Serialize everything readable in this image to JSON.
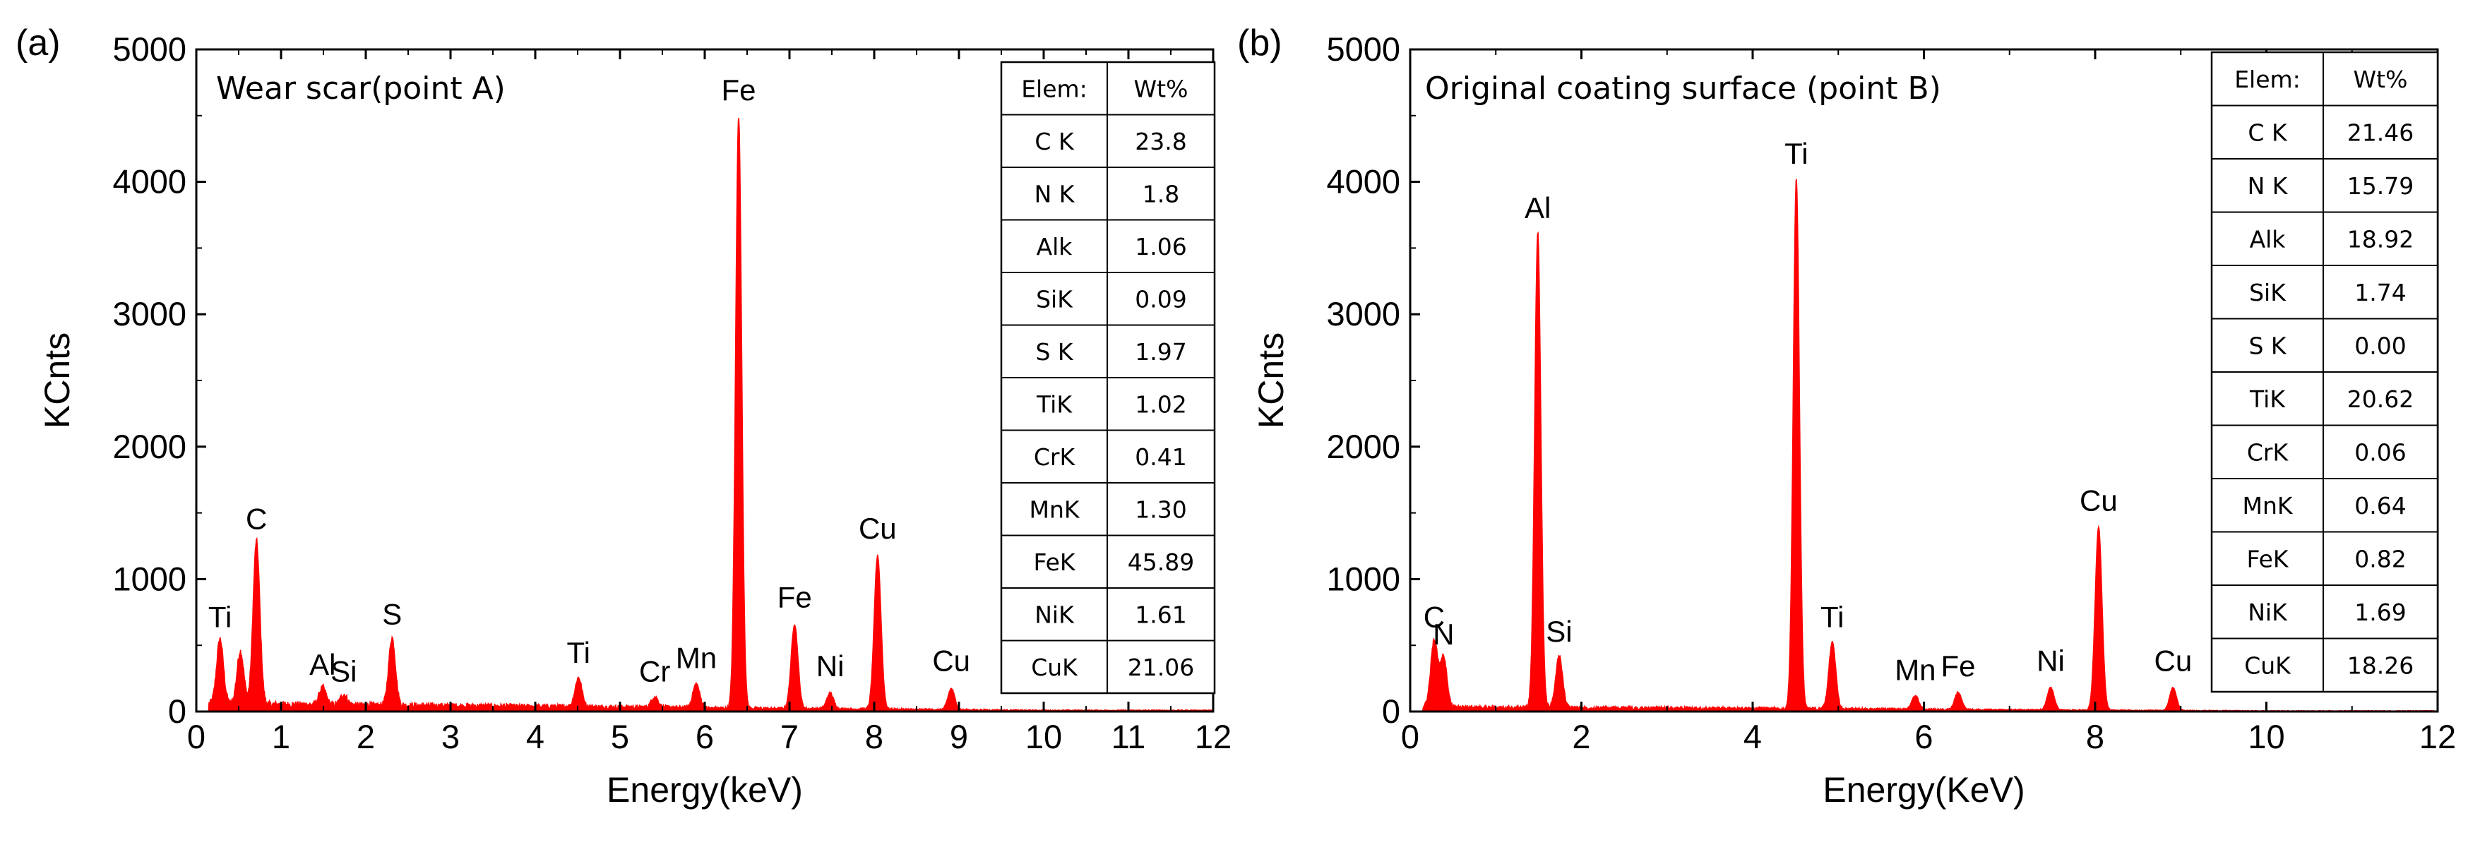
{
  "chart_data": [
    {
      "type": "line",
      "panel_label": "(a)",
      "inset_title": "Wear scar(point A)",
      "xlabel": "Energy(keV)",
      "ylabel": "KCnts",
      "xlim": [
        0,
        12
      ],
      "ylim": [
        0,
        5000
      ],
      "x_ticks": [
        0,
        1,
        2,
        3,
        4,
        5,
        6,
        7,
        8,
        9,
        10,
        11,
        12
      ],
      "y_ticks": [
        0,
        1000,
        2000,
        3000,
        4000,
        5000
      ],
      "series_color": "#ff0000",
      "baseline": 60,
      "peaks": [
        {
          "x": 0.28,
          "y": 520,
          "label": "Ti"
        },
        {
          "x": 0.52,
          "y": 430,
          "label": ""
        },
        {
          "x": 0.71,
          "y": 1260,
          "label": "C"
        },
        {
          "x": 1.49,
          "y": 160,
          "label": "Al"
        },
        {
          "x": 1.74,
          "y": 110,
          "label": "Si"
        },
        {
          "x": 2.31,
          "y": 540,
          "label": "S"
        },
        {
          "x": 4.51,
          "y": 250,
          "label": "Ti"
        },
        {
          "x": 5.41,
          "y": 110,
          "label": "Cr"
        },
        {
          "x": 5.9,
          "y": 210,
          "label": "Mn"
        },
        {
          "x": 6.4,
          "y": 4500,
          "label": "Fe"
        },
        {
          "x": 7.06,
          "y": 670,
          "label": "Fe"
        },
        {
          "x": 7.48,
          "y": 150,
          "label": "Ni"
        },
        {
          "x": 8.04,
          "y": 1190,
          "label": "Cu"
        },
        {
          "x": 8.91,
          "y": 190,
          "label": "Cu"
        }
      ],
      "table": {
        "header": [
          "Elem:",
          "Wt%"
        ],
        "rows": [
          [
            "C K",
            "23.8"
          ],
          [
            "N K",
            "1.8"
          ],
          [
            "Alk",
            "1.06"
          ],
          [
            "SiK",
            "0.09"
          ],
          [
            "S K",
            "1.97"
          ],
          [
            "TiK",
            "1.02"
          ],
          [
            "CrK",
            "0.41"
          ],
          [
            "MnK",
            "1.30"
          ],
          [
            "FeK",
            "45.89"
          ],
          [
            "NiK",
            "1.61"
          ],
          [
            "CuK",
            "21.06"
          ]
        ]
      }
    },
    {
      "type": "line",
      "panel_label": "(b)",
      "inset_title": "Original coating surface (point B)",
      "xlabel": "Energy(KeV)",
      "ylabel": "KCnts",
      "xlim": [
        0,
        12
      ],
      "ylim": [
        0,
        5000
      ],
      "x_ticks": [
        0,
        2,
        4,
        6,
        8,
        10,
        12
      ],
      "y_ticks": [
        0,
        1000,
        2000,
        3000,
        4000,
        5000
      ],
      "series_color": "#ff0000",
      "baseline": 35,
      "peaks": [
        {
          "x": 0.28,
          "y": 520,
          "label": "C"
        },
        {
          "x": 0.39,
          "y": 390,
          "label": "N"
        },
        {
          "x": 1.49,
          "y": 3610,
          "label": "Al"
        },
        {
          "x": 1.74,
          "y": 410,
          "label": "Si"
        },
        {
          "x": 4.51,
          "y": 4020,
          "label": "Ti"
        },
        {
          "x": 4.93,
          "y": 520,
          "label": "Ti"
        },
        {
          "x": 5.9,
          "y": 120,
          "label": "Mn"
        },
        {
          "x": 6.4,
          "y": 150,
          "label": "Fe"
        },
        {
          "x": 7.48,
          "y": 190,
          "label": "Ni"
        },
        {
          "x": 8.04,
          "y": 1400,
          "label": "Cu"
        },
        {
          "x": 8.91,
          "y": 190,
          "label": "Cu"
        }
      ],
      "table": {
        "header": [
          "Elem:",
          "Wt%"
        ],
        "rows": [
          [
            "C K",
            "21.46"
          ],
          [
            "N K",
            "15.79"
          ],
          [
            "Alk",
            "18.92"
          ],
          [
            "SiK",
            "1.74"
          ],
          [
            "S K",
            "0.00"
          ],
          [
            "TiK",
            "20.62"
          ],
          [
            "CrK",
            "0.06"
          ],
          [
            "MnK",
            "0.64"
          ],
          [
            "FeK",
            "0.82"
          ],
          [
            "NiK",
            "1.69"
          ],
          [
            "CuK",
            "18.26"
          ]
        ]
      }
    }
  ]
}
